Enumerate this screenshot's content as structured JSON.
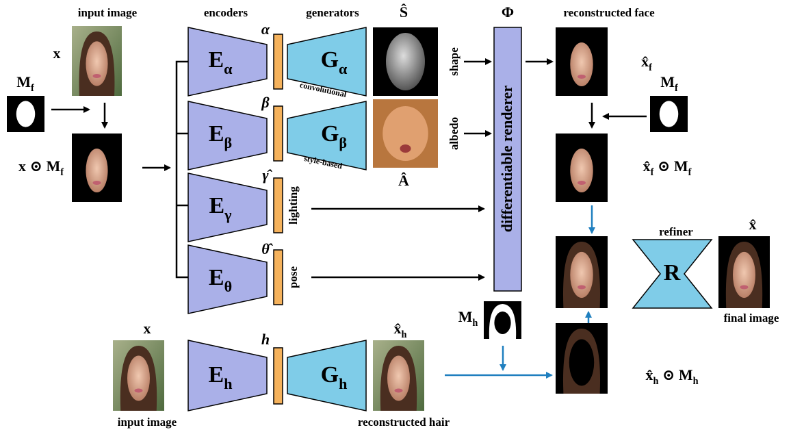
{
  "labels": {
    "input_image_top": "input image",
    "x_top": "x",
    "mf_left": [
      "M",
      "f"
    ],
    "x_mask": [
      "x ⊙ M",
      "f"
    ],
    "encoders": "encoders",
    "generators": "generators",
    "s_hat": "Ŝ",
    "phi": "Φ",
    "reconstructed_face": "reconstructed face",
    "xf_hat": [
      "x̂",
      "f"
    ],
    "mf_right": [
      "M",
      "f"
    ],
    "xf_mask": [
      "x̂",
      "f",
      " ⊙ M",
      "f"
    ],
    "alpha": "α",
    "beta": "β",
    "gamma": "γ̂",
    "theta": "θ̂",
    "e_alpha": [
      "E",
      "α"
    ],
    "e_beta": [
      "E",
      "β"
    ],
    "e_gamma": [
      "E",
      "γ"
    ],
    "e_theta": [
      "E",
      "θ"
    ],
    "g_alpha": [
      "G",
      "α"
    ],
    "g_beta": [
      "G",
      "β"
    ],
    "convolutional": "convolutional",
    "style_based": "style-based",
    "shape": "shape",
    "albedo": "albedo",
    "a_hat": "Â",
    "lighting": "lighting",
    "pose": "pose",
    "renderer": "differentiable renderer",
    "refiner": "refiner",
    "x_hat": "x̂",
    "r": "R",
    "final_image": "final image",
    "mh": [
      "M",
      "h"
    ],
    "xh_hat": [
      "x̂",
      "h"
    ],
    "xh_mask": [
      "x̂",
      "h",
      " ⊙ M",
      "h"
    ],
    "x_bottom": "x",
    "h": "h",
    "e_h": [
      "E",
      "h"
    ],
    "g_h": [
      "G",
      "h"
    ],
    "input_image_bottom": "input image",
    "reconstructed_hair": "reconstructed hair"
  }
}
